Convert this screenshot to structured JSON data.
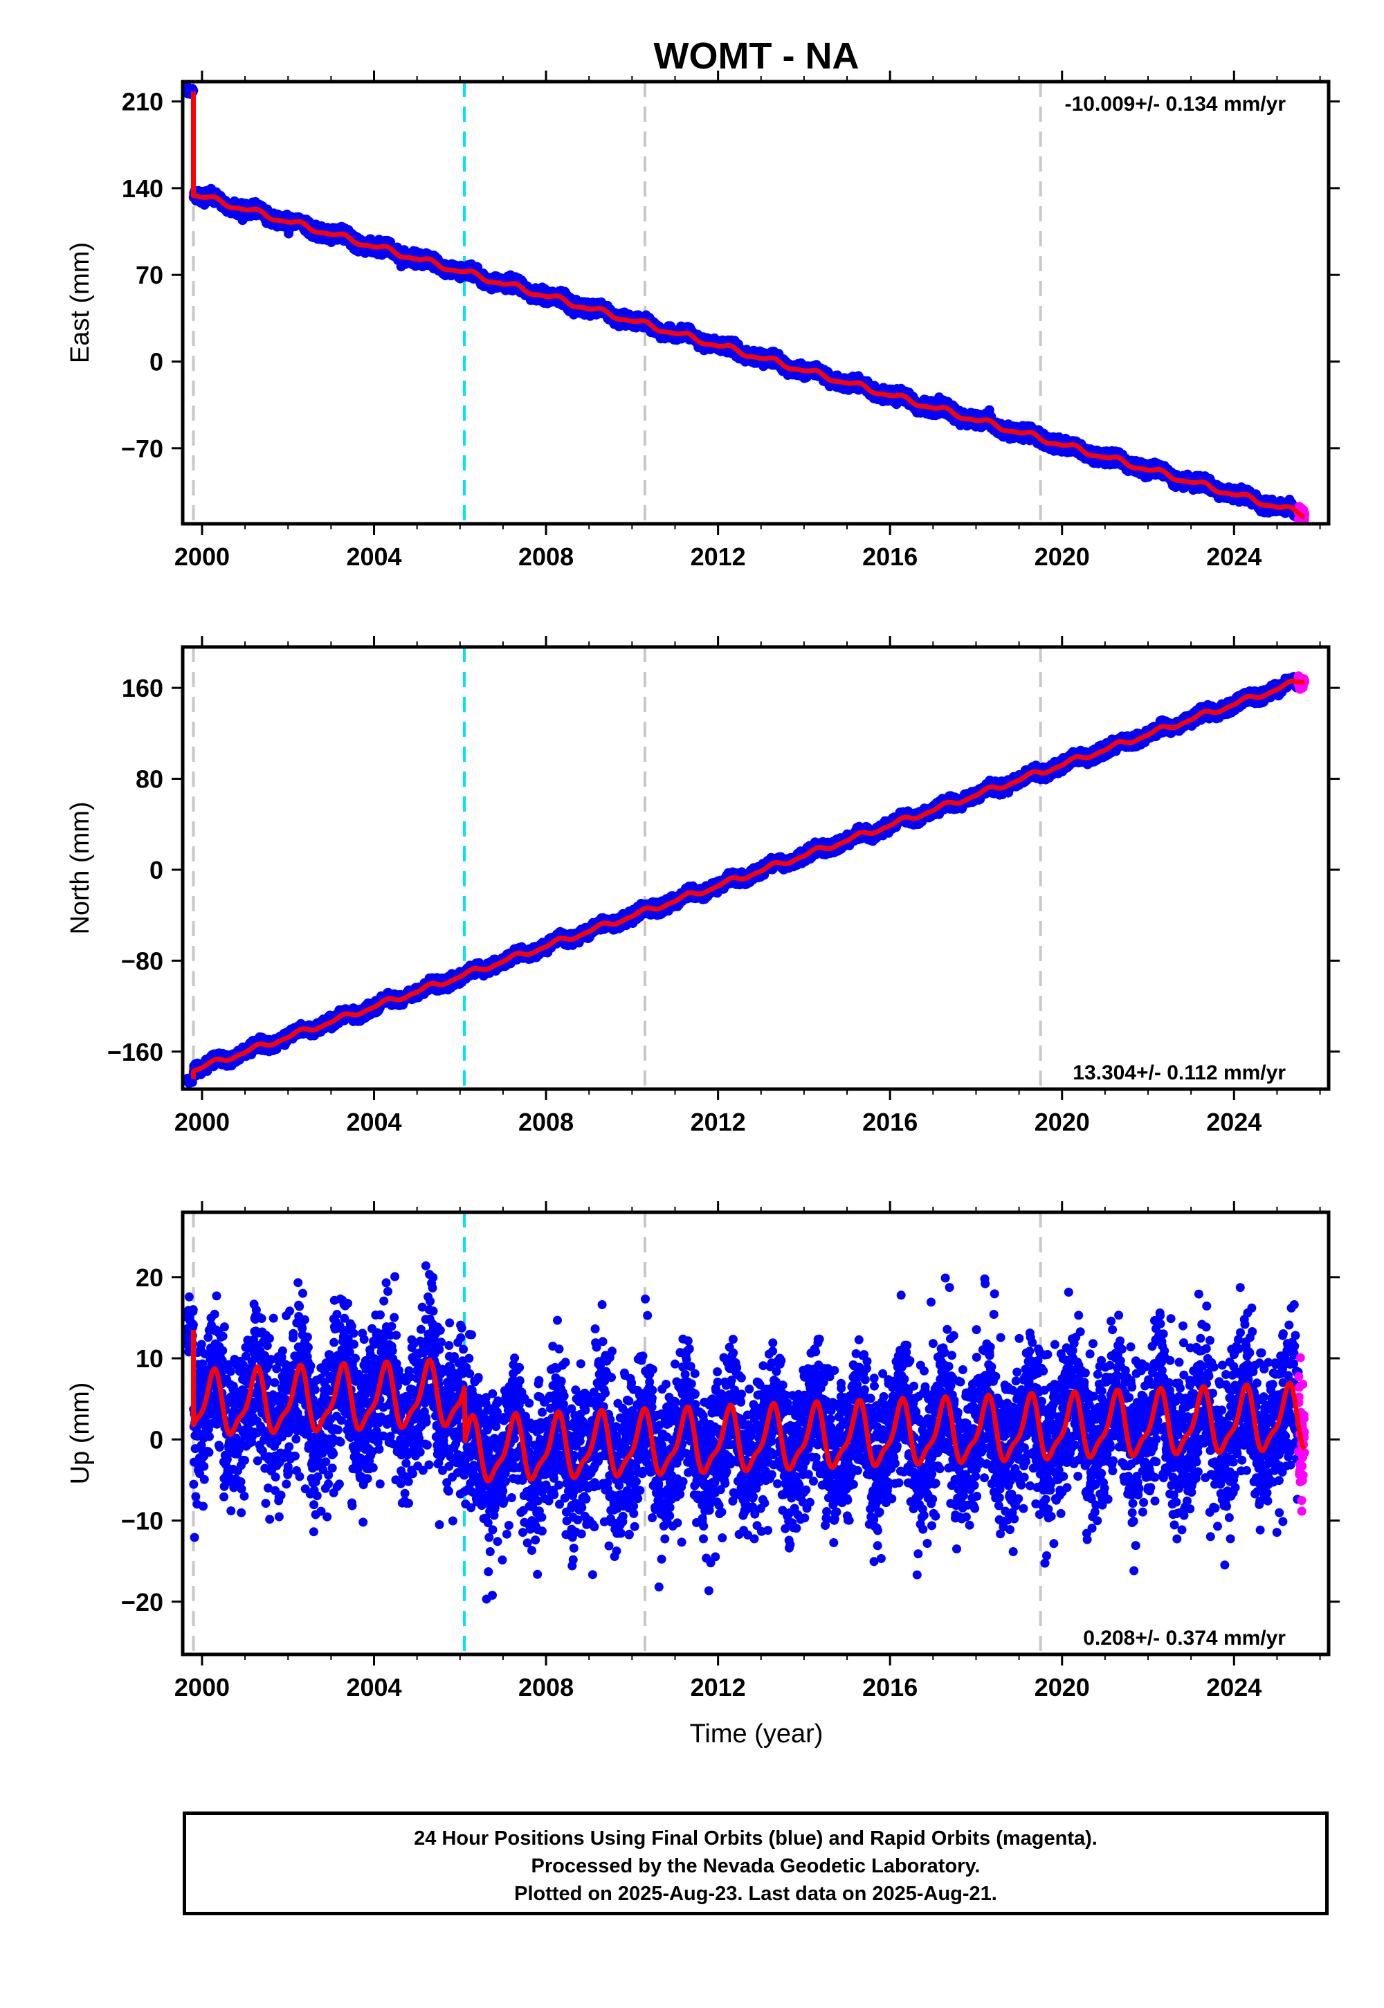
{
  "chart_data": {
    "title": "WOMT - NA",
    "type": "scatter",
    "xlabel": "Time (year)",
    "xlim": [
      1999.55,
      2026.2
    ],
    "xticks": [
      2000,
      2004,
      2008,
      2012,
      2016,
      2020,
      2024
    ],
    "event_lines": {
      "gray_dashed": [
        1999.8,
        2010.3,
        2019.5
      ],
      "cyan_dashed": [
        2006.1
      ]
    },
    "colors": {
      "final_orbits": "#0000ff",
      "rapid_orbits": "#ff00ff",
      "model": "#ff0000",
      "gray_line": "#c8c8c8",
      "cyan_line": "#00e5ee"
    },
    "data_span": [
      1999.65,
      2025.64
    ],
    "rapid_start": 2025.5,
    "panels": [
      {
        "ylabel": "East (mm)",
        "ylim": [
          -131,
          226
        ],
        "yticks": [
          210,
          140,
          70,
          0,
          -70
        ],
        "ytick_labels": [
          "210",
          "140",
          "70",
          "0",
          "−70"
        ],
        "rate": "-10.009+/- 0.134 mm/yr",
        "rate_position": "top-right",
        "model": {
          "velocity": -10.009,
          "offset_at_2012": 13,
          "steps": [
            {
              "year": 1999.8,
              "size": -65
            }
          ],
          "annual_amp": 2.0,
          "semiannual_amp": 0.8,
          "noise_sd": 2.2,
          "band_width": 6,
          "start_value": 218
        }
      },
      {
        "ylabel": "North (mm)",
        "ylim": [
          -193,
          196
        ],
        "yticks": [
          160,
          80,
          0,
          -80,
          -160
        ],
        "ytick_labels": [
          "160",
          "80",
          "0",
          "−80",
          "−160"
        ],
        "rate": "13.304+/- 0.112 mm/yr",
        "rate_position": "bottom-right",
        "model": {
          "velocity": 13.304,
          "offset_at_2012": -14,
          "steps": [
            {
              "year": 1999.8,
              "size": 14
            }
          ],
          "annual_amp": 2.0,
          "semiannual_amp": 0.8,
          "noise_sd": 2.0,
          "band_width": 6,
          "start_value": -184
        }
      },
      {
        "ylabel": "Up (mm)",
        "ylim": [
          -26.5,
          28
        ],
        "yticks": [
          20,
          10,
          0,
          -10,
          -20
        ],
        "ytick_labels": [
          "20",
          "10",
          "0",
          "−10",
          "−20"
        ],
        "rate": "0.208+/- 0.374 mm/yr",
        "rate_position": "bottom-right",
        "model": {
          "velocity": 0.208,
          "offset_at_2012": -0.4,
          "steps": [
            {
              "year": 2006.1,
              "size": -7
            }
          ],
          "annual_amp": 3.6,
          "semiannual_amp": 1.2,
          "noise_sd": 4.6,
          "band_width": 0,
          "start_value": 13.5
        }
      }
    ]
  },
  "footer": {
    "line1": "24 Hour Positions Using Final Orbits (blue) and Rapid Orbits (magenta).",
    "line2": "Processed by the Nevada Geodetic Laboratory.",
    "line3": "Plotted on 2025-Aug-23. Last data on 2025-Aug-21."
  }
}
